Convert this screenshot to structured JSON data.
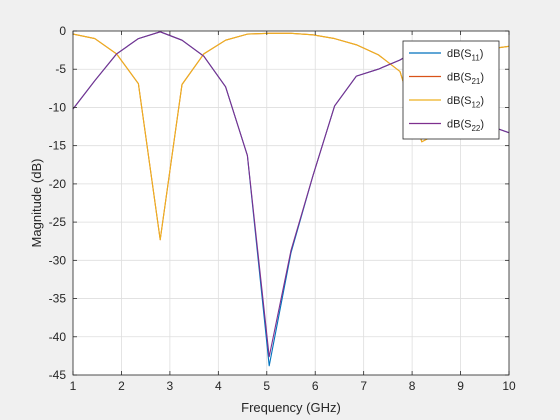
{
  "chart_data": {
    "type": "line",
    "xlabel": "Frequency (GHz)",
    "ylabel": "Magnitude (dB)",
    "xlim": [
      1,
      10
    ],
    "ylim": [
      -45,
      0
    ],
    "xticks": [
      1,
      2,
      3,
      4,
      5,
      6,
      7,
      8,
      9,
      10
    ],
    "yticks": [
      0,
      -5,
      -10,
      -15,
      -20,
      -25,
      -30,
      -35,
      -40,
      -45
    ],
    "grid": true,
    "legend_position": "top-right",
    "series": [
      {
        "name": "dB(S11)",
        "sub": "11",
        "color": "#0072BD",
        "x": [
          1,
          1.45,
          1.9,
          2.35,
          2.8,
          3.25,
          3.7,
          4.15,
          4.6,
          5.05,
          5.5,
          5.95,
          6.4,
          6.85,
          7.3,
          7.75,
          8.2,
          8.65,
          9.1,
          9.55,
          10
        ],
        "y": [
          -10.2,
          -6.5,
          -3.0,
          -1.0,
          -0.1,
          -1.2,
          -3.3,
          -7.3,
          -16.3,
          -43.8,
          -29.0,
          -19.0,
          -9.8,
          -5.9,
          -5.0,
          -3.8,
          -2.1,
          -6.4,
          -10.5,
          -12.3,
          -13.3
        ]
      },
      {
        "name": "dB(S21)",
        "sub": "21",
        "color": "#D95319",
        "x": [
          1,
          1.45,
          1.9,
          2.35,
          2.8,
          3.25,
          3.7,
          4.15,
          4.6,
          5.05,
          5.5,
          5.95,
          6.4,
          6.85,
          7.3,
          7.75,
          8.2,
          8.65,
          9.1,
          9.55,
          10
        ],
        "y": [
          -0.4,
          -1.0,
          -3.0,
          -6.9,
          -27.3,
          -7.0,
          -3.0,
          -1.2,
          -0.4,
          -0.3,
          -0.3,
          -0.5,
          -1.0,
          -1.8,
          -3.1,
          -5.3,
          -14.5,
          -13.0,
          -5.5,
          -2.4,
          -2.0
        ]
      },
      {
        "name": "dB(S12)",
        "sub": "12",
        "color": "#EDB120",
        "x": [
          1,
          1.45,
          1.9,
          2.35,
          2.8,
          3.25,
          3.7,
          4.15,
          4.6,
          5.05,
          5.5,
          5.95,
          6.4,
          6.85,
          7.3,
          7.75,
          8.2,
          8.65,
          9.1,
          9.55,
          10
        ],
        "y": [
          -0.4,
          -1.0,
          -3.0,
          -6.9,
          -27.3,
          -7.0,
          -3.0,
          -1.2,
          -0.4,
          -0.3,
          -0.3,
          -0.5,
          -1.0,
          -1.8,
          -3.1,
          -5.3,
          -14.5,
          -13.0,
          -5.5,
          -2.4,
          -2.0
        ]
      },
      {
        "name": "dB(S22)",
        "sub": "22",
        "color": "#7E2F8E",
        "x": [
          1,
          1.45,
          1.9,
          2.35,
          2.8,
          3.25,
          3.7,
          4.15,
          4.6,
          5.05,
          5.5,
          5.95,
          6.4,
          6.85,
          7.3,
          7.75,
          8.2,
          8.65,
          9.1,
          9.55,
          10
        ],
        "y": [
          -10.2,
          -6.5,
          -3.0,
          -1.0,
          -0.1,
          -1.2,
          -3.3,
          -7.3,
          -16.3,
          -42.6,
          -28.7,
          -19.0,
          -9.8,
          -5.9,
          -5.0,
          -3.8,
          -2.1,
          -6.4,
          -10.5,
          -12.3,
          -13.3
        ]
      }
    ]
  }
}
